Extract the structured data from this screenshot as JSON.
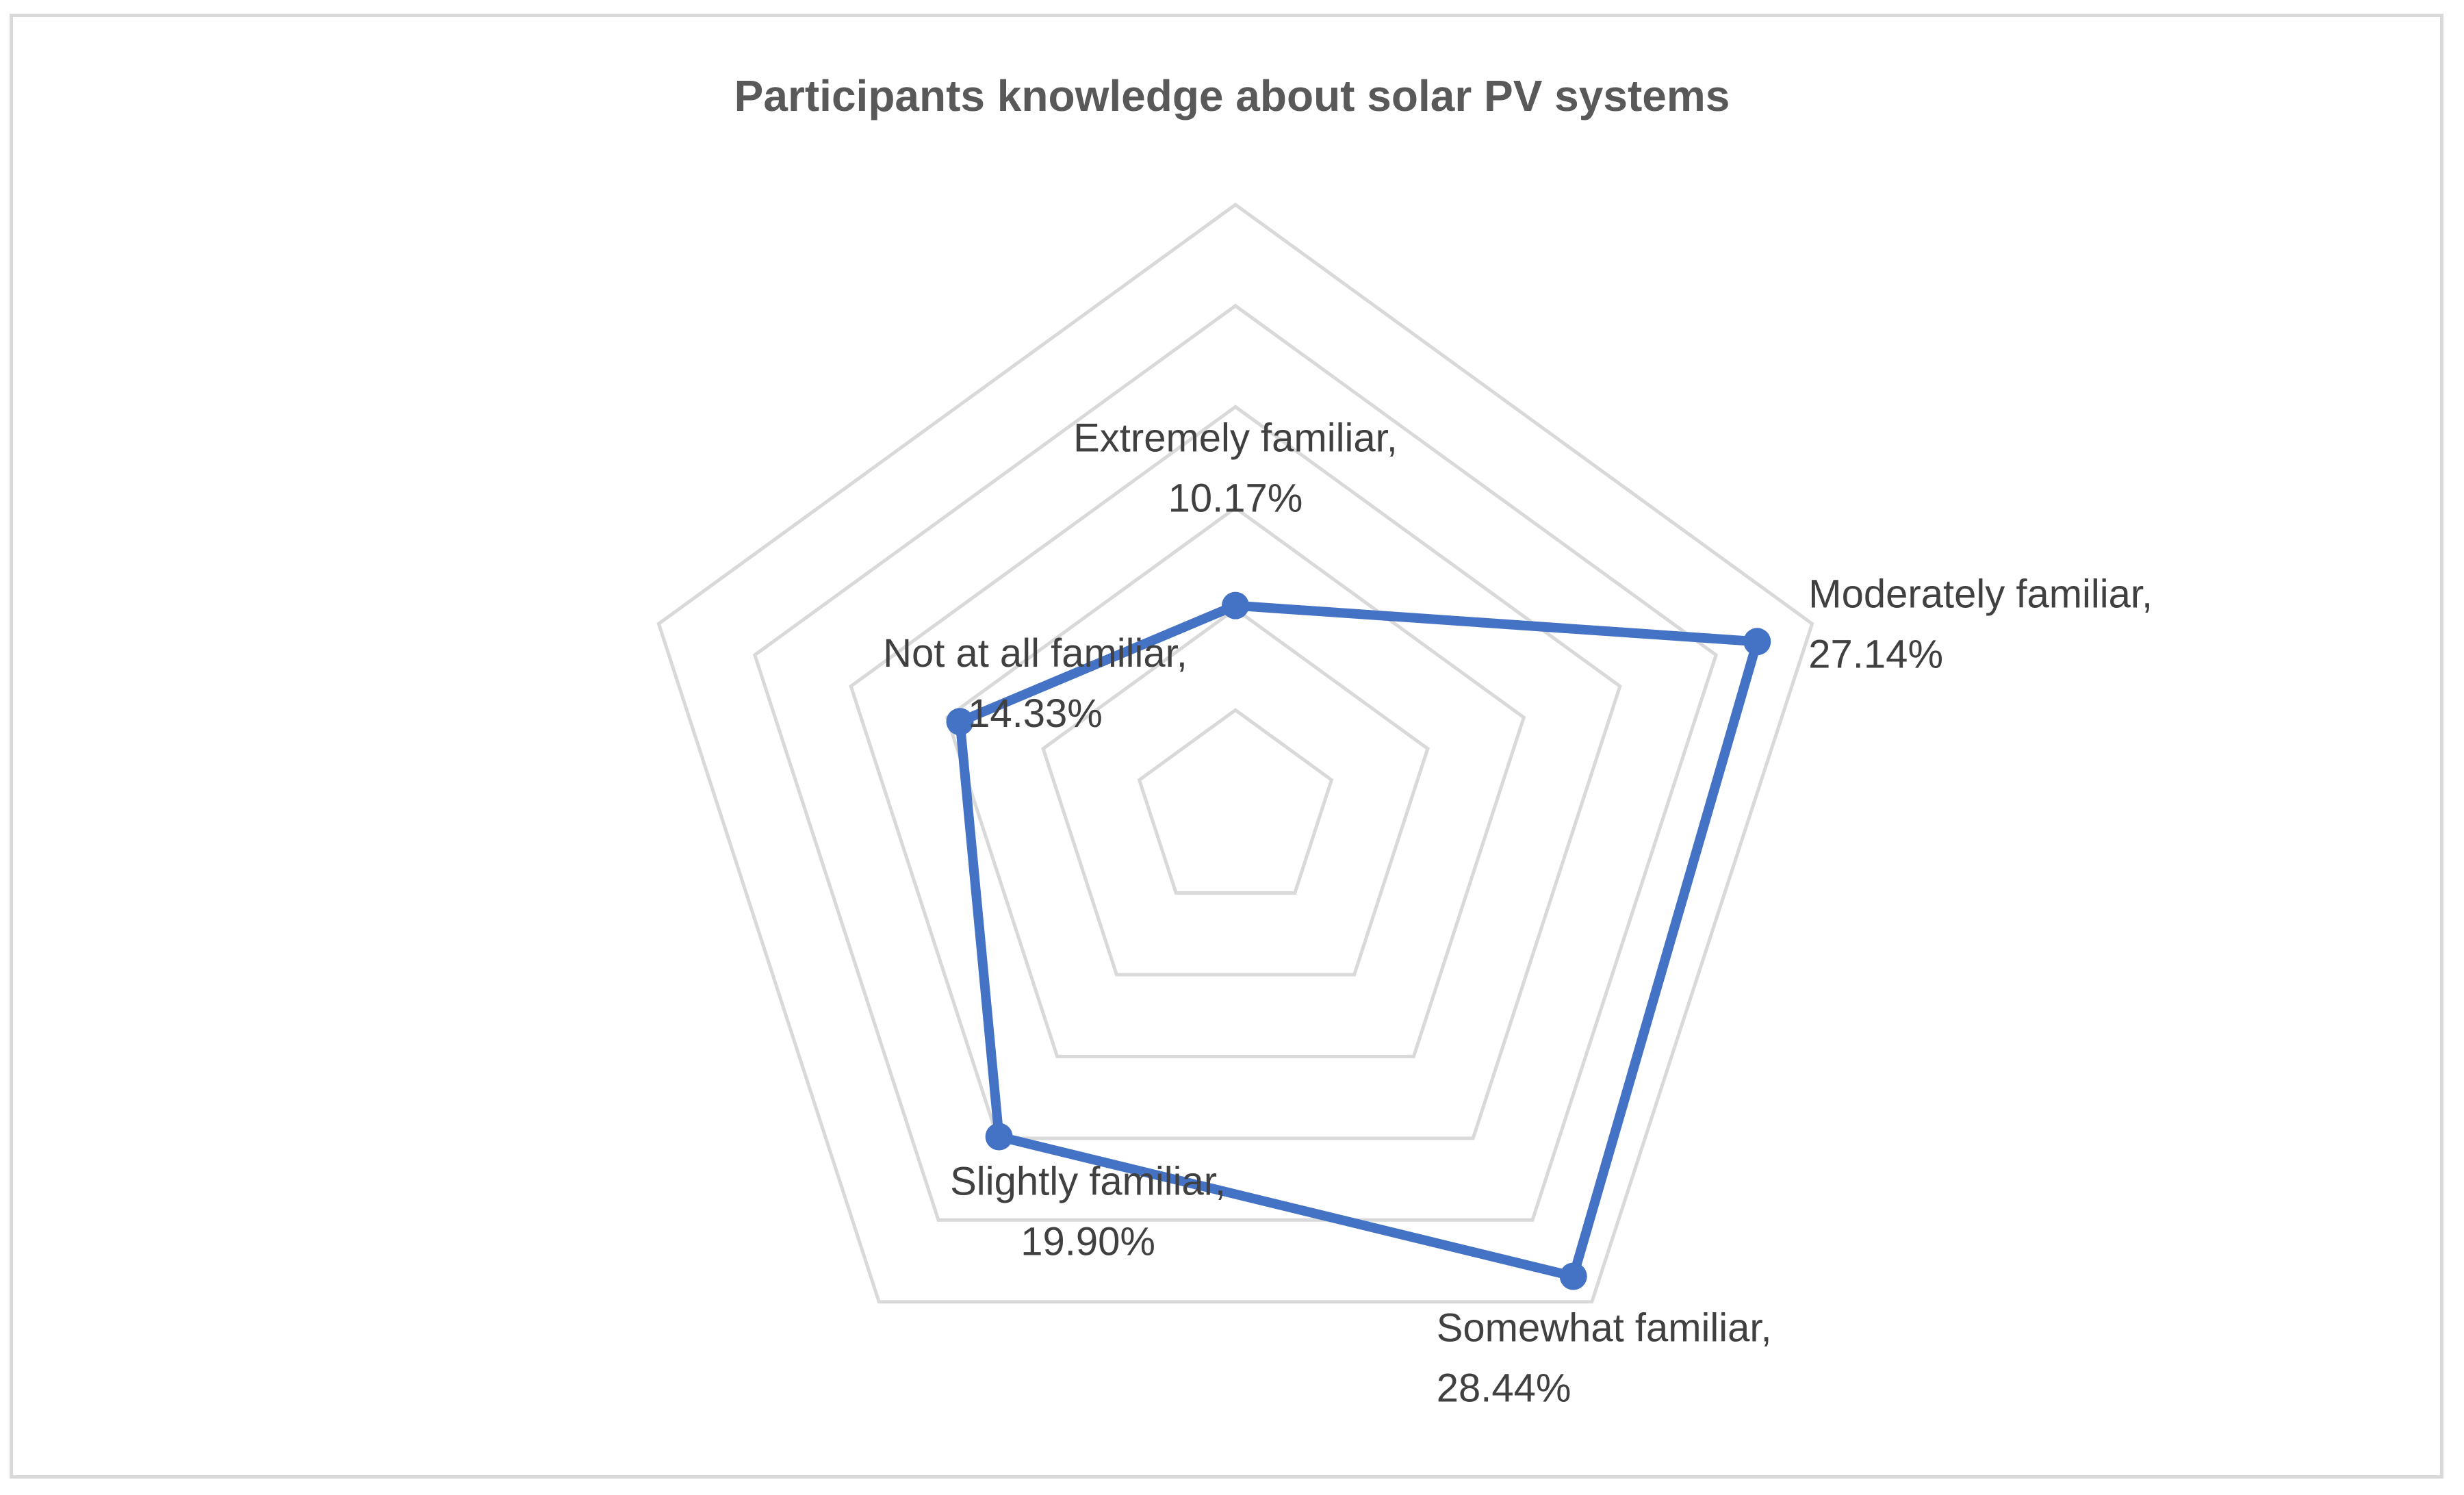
{
  "chart_data": {
    "type": "radar",
    "title": "Participants knowledge about solar PV systems",
    "categories": [
      "Extremely familiar",
      "Moderately familiar",
      "Somewhat familiar",
      "Slightly familiar",
      "Not at all familiar"
    ],
    "series": [
      {
        "name": "Participants",
        "values": [
          10.17,
          27.14,
          28.44,
          19.9,
          14.33
        ],
        "color": "#4472c4"
      }
    ],
    "value_labels": [
      "10.17%",
      "27.14%",
      "28.44%",
      "19.90%",
      "14.33%"
    ],
    "rmin": 0,
    "rmax": 30,
    "grid_steps": [
      5,
      10,
      15,
      20,
      25,
      30
    ],
    "grid_color": "#d9d9d9",
    "axis_tick_labels_shown": false,
    "legend": "none"
  }
}
